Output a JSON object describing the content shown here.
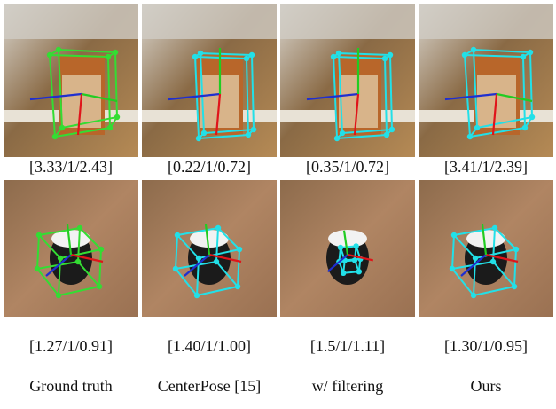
{
  "rows": [
    {
      "captions": [
        "[3.33/1/2.43]",
        "[0.22/1/0.72]",
        "[0.35/1/0.72]",
        "[3.41/1/2.39]"
      ]
    },
    {
      "captions": [
        "[1.27/1/0.91]",
        "[1.40/1/1.00]",
        "[1.5/1/1.11]",
        "[1.30/1/0.95]"
      ]
    }
  ],
  "columns": [
    "Ground truth",
    "CenterPose [15]",
    "w/ filtering",
    "Ours"
  ]
}
